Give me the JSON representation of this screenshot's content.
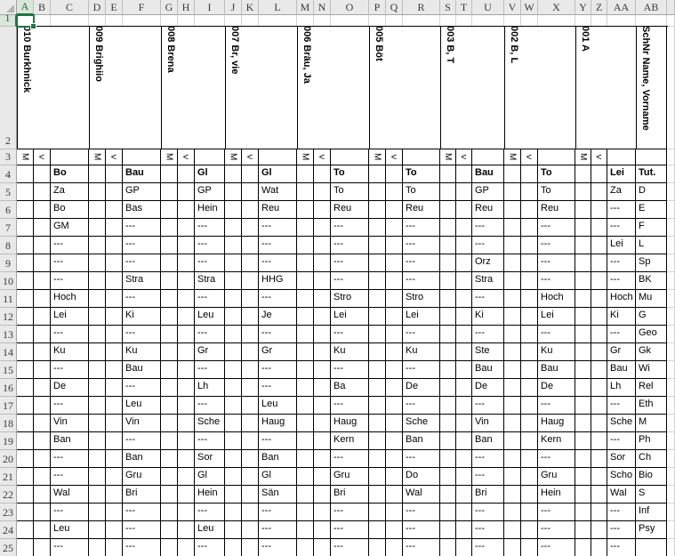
{
  "sheet": {
    "selected_cell": "A1",
    "row_numbers": [
      "1",
      "2",
      "3",
      "4",
      "5",
      "6",
      "7",
      "8",
      "9",
      "10",
      "11",
      "12",
      "13",
      "14",
      "15",
      "16",
      "17",
      "18",
      "19",
      "20",
      "21",
      "22",
      "23",
      "24",
      "25"
    ],
    "colors": {
      "selection_green": "#217346",
      "table_border": "#000000",
      "gridline": "#d4d4d4",
      "header_bg": "#e9e9e9",
      "selected_header_bg": "#d9e6d9"
    },
    "marker_m": "M",
    "marker_lt": "<",
    "groups": [
      {
        "letters": [
          "A",
          "B",
          "C"
        ],
        "vertical_name": "010 Burkhnick",
        "label": "Bo",
        "values": [
          "Za",
          "Bo",
          "GM",
          "---",
          "---",
          "---",
          "Hoch",
          "Lei",
          "---",
          "Ku",
          "---",
          "De",
          "---",
          "Vin",
          "Ban",
          "---",
          "---",
          "Wal",
          "---",
          "Leu",
          "---"
        ]
      },
      {
        "letters": [
          "D",
          "E",
          "F"
        ],
        "vertical_name": "009 Brighiio",
        "label": "Bau",
        "values": [
          "GP",
          "Bas",
          "---",
          "---",
          "---",
          "Stra",
          "---",
          "Ki",
          "---",
          "Ku",
          "Bau",
          "---",
          "Leu",
          "Vin",
          "---",
          "Ban",
          "Gru",
          "Bri",
          "---",
          "---",
          "---"
        ]
      },
      {
        "letters": [
          "G",
          "H",
          "I"
        ],
        "vertical_name": "008 Brena",
        "label": "Gl",
        "values": [
          "GP",
          "Hein",
          "---",
          "---",
          "---",
          "Stra",
          "---",
          "Leu",
          "---",
          "Gr",
          "---",
          "Lh",
          "---",
          "Sche",
          "---",
          "Sor",
          "Gl",
          "Hein",
          "---",
          "Leu",
          "---"
        ]
      },
      {
        "letters": [
          "J",
          "K",
          "L"
        ],
        "vertical_name": "007 Br, vie",
        "label": "Gl",
        "values": [
          "Wat",
          "Reu",
          "---",
          "---",
          "---",
          "HHG",
          "---",
          "Je",
          "---",
          "Gr",
          "---",
          "---",
          "Leu",
          "Haug",
          "---",
          "Ban",
          "Gl",
          "Sän",
          "---",
          "---",
          "---"
        ]
      },
      {
        "letters": [
          "M",
          "N",
          "O"
        ],
        "vertical_name": "006 Bräu, Ja",
        "label": "To",
        "values": [
          "To",
          "Reu",
          "---",
          "---",
          "---",
          "---",
          "Stro",
          "Lei",
          "---",
          "Ku",
          "---",
          "Ba",
          "---",
          "Haug",
          "Kern",
          "---",
          "Gru",
          "Bri",
          "---",
          "---",
          "---"
        ]
      },
      {
        "letters": [
          "P",
          "Q",
          "R"
        ],
        "vertical_name": "005 Böt",
        "label": "To",
        "values": [
          "To",
          "Reu",
          "---",
          "---",
          "---",
          "---",
          "Stro",
          "Lei",
          "---",
          "Ku",
          "---",
          "De",
          "---",
          "Sche",
          "Ban",
          "---",
          "Do",
          "Wal",
          "---",
          "---",
          "---"
        ]
      },
      {
        "letters": [
          "S",
          "T",
          "U"
        ],
        "vertical_name": "003 B, T",
        "label": "Bau",
        "values": [
          "GP",
          "Reu",
          "---",
          "---",
          "Orz",
          "Stra",
          "---",
          "Ki",
          "---",
          "Ste",
          "Bau",
          "De",
          "---",
          "Vin",
          "Ban",
          "---",
          "---",
          "Bri",
          "---",
          "---",
          "---"
        ]
      },
      {
        "letters": [
          "V",
          "W",
          "X"
        ],
        "vertical_name": "002 B, L",
        "label": "To",
        "values": [
          "To",
          "Reu",
          "---",
          "---",
          "---",
          "---",
          "Hoch",
          "Lei",
          "---",
          "Ku",
          "Bau",
          "De",
          "---",
          "Haug",
          "Kern",
          "---",
          "Gru",
          "Hein",
          "---",
          "---",
          "---"
        ]
      },
      {
        "letters": [
          "Y",
          "Z",
          "AA"
        ],
        "vertical_name": "001 A",
        "label": "Lei",
        "values": [
          "Za",
          "---",
          "---",
          "Lei",
          "---",
          "---",
          "Hoch",
          "Ki",
          "---",
          "Gr",
          "Bau",
          "Lh",
          "---",
          "Sche",
          "---",
          "Sor",
          "Scho",
          "Wal",
          "---",
          "---",
          "---"
        ]
      },
      {
        "letters": [
          "AB"
        ],
        "vertical_name": "SchNr Name, Vorname",
        "label": "Tut.",
        "values": [
          "D",
          "E",
          "F",
          "L",
          "Sp",
          "BK",
          "Mu",
          "G",
          "Geo",
          "Gk",
          "Wi",
          "Rel",
          "Eth",
          "M",
          "Ph",
          "Ch",
          "Bio",
          "S",
          "Inf",
          "Psy",
          ""
        ]
      }
    ]
  }
}
